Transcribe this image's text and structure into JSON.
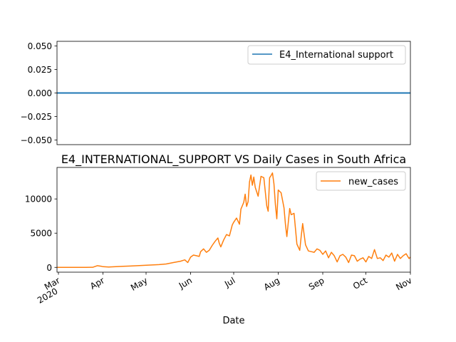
{
  "chart_data": [
    {
      "type": "line",
      "title": "",
      "xlabel": "",
      "ylabel": "",
      "ylim": [
        -0.055,
        0.055
      ],
      "yticks": [
        "0.050",
        "0.025",
        "0.000",
        "−0.025",
        "−0.050"
      ],
      "ytick_values": [
        0.05,
        0.025,
        0.0,
        -0.025,
        -0.05
      ],
      "grid": false,
      "legend_position": "upper right",
      "series": [
        {
          "name": "E4_International support",
          "color": "#1f77b4",
          "x": [
            "2020-02-29",
            "2020-11-01"
          ],
          "values": [
            0,
            0
          ]
        }
      ]
    },
    {
      "type": "line",
      "title": "E4_INTERNATIONAL_SUPPORT VS Daily Cases in South Africa",
      "xlabel": "Date",
      "ylabel": "",
      "ylim": [
        -700,
        14600
      ],
      "yticks": [
        "0",
        "5000",
        "10000"
      ],
      "ytick_values": [
        0,
        5000,
        10000
      ],
      "xlim": [
        "2020-02-29",
        "2020-11-01"
      ],
      "xticks": [
        {
          "date": "2020-03-01",
          "label": "Mar",
          "sublabel": "2020"
        },
        {
          "date": "2020-04-01",
          "label": "Apr",
          "sublabel": ""
        },
        {
          "date": "2020-05-01",
          "label": "May",
          "sublabel": ""
        },
        {
          "date": "2020-06-01",
          "label": "Jun",
          "sublabel": ""
        },
        {
          "date": "2020-07-01",
          "label": "Jul",
          "sublabel": ""
        },
        {
          "date": "2020-08-01",
          "label": "Aug",
          "sublabel": ""
        },
        {
          "date": "2020-09-01",
          "label": "Sep",
          "sublabel": ""
        },
        {
          "date": "2020-10-01",
          "label": "Oct",
          "sublabel": ""
        },
        {
          "date": "2020-11-01",
          "label": "Nov",
          "sublabel": ""
        }
      ],
      "grid": false,
      "legend_position": "upper right",
      "series": [
        {
          "name": "new_cases",
          "color": "#ff7f0e",
          "x": [
            "2020-02-29",
            "2020-03-05",
            "2020-03-10",
            "2020-03-15",
            "2020-03-20",
            "2020-03-25",
            "2020-03-28",
            "2020-03-31",
            "2020-04-01",
            "2020-04-05",
            "2020-04-10",
            "2020-04-15",
            "2020-04-20",
            "2020-04-25",
            "2020-04-30",
            "2020-05-05",
            "2020-05-10",
            "2020-05-15",
            "2020-05-20",
            "2020-05-25",
            "2020-05-28",
            "2020-05-30",
            "2020-06-01",
            "2020-06-03",
            "2020-06-05",
            "2020-06-07",
            "2020-06-08",
            "2020-06-10",
            "2020-06-12",
            "2020-06-14",
            "2020-06-16",
            "2020-06-18",
            "2020-06-20",
            "2020-06-21",
            "2020-06-22",
            "2020-06-24",
            "2020-06-26",
            "2020-06-28",
            "2020-06-30",
            "2020-07-01",
            "2020-07-03",
            "2020-07-05",
            "2020-07-06",
            "2020-07-08",
            "2020-07-09",
            "2020-07-10",
            "2020-07-11",
            "2020-07-12",
            "2020-07-13",
            "2020-07-14",
            "2020-07-15",
            "2020-07-16",
            "2020-07-18",
            "2020-07-20",
            "2020-07-22",
            "2020-07-24",
            "2020-07-25",
            "2020-07-26",
            "2020-07-27",
            "2020-07-28",
            "2020-07-29",
            "2020-07-30",
            "2020-07-31",
            "2020-08-01",
            "2020-08-03",
            "2020-08-05",
            "2020-08-06",
            "2020-08-07",
            "2020-08-09",
            "2020-08-10",
            "2020-08-12",
            "2020-08-14",
            "2020-08-16",
            "2020-08-17",
            "2020-08-18",
            "2020-08-20",
            "2020-08-22",
            "2020-08-24",
            "2020-08-26",
            "2020-08-28",
            "2020-08-30",
            "2020-09-01",
            "2020-09-03",
            "2020-09-05",
            "2020-09-07",
            "2020-09-09",
            "2020-09-11",
            "2020-09-13",
            "2020-09-15",
            "2020-09-17",
            "2020-09-19",
            "2020-09-21",
            "2020-09-23",
            "2020-09-25",
            "2020-09-27",
            "2020-09-29",
            "2020-10-01",
            "2020-10-03",
            "2020-10-05",
            "2020-10-07",
            "2020-10-09",
            "2020-10-11",
            "2020-10-13",
            "2020-10-15",
            "2020-10-17",
            "2020-10-19",
            "2020-10-21",
            "2020-10-23",
            "2020-10-25",
            "2020-10-27",
            "2020-10-29",
            "2020-10-31",
            "2020-11-01"
          ],
          "values": [
            0,
            0,
            0,
            0,
            10,
            20,
            250,
            150,
            100,
            50,
            100,
            150,
            200,
            250,
            300,
            350,
            400,
            500,
            700,
            900,
            1100,
            700,
            1500,
            1800,
            1700,
            1600,
            2300,
            2700,
            2200,
            2500,
            3200,
            3800,
            4300,
            3500,
            3000,
            4000,
            4800,
            4600,
            6200,
            6600,
            7200,
            6300,
            8500,
            9500,
            10700,
            8900,
            9600,
            12500,
            13500,
            12000,
            13200,
            11700,
            10400,
            13300,
            13100,
            9000,
            8200,
            13100,
            13400,
            13800,
            12200,
            9200,
            7100,
            11300,
            10900,
            8700,
            6300,
            4500,
            8600,
            7700,
            7900,
            3400,
            2500,
            4600,
            6400,
            3300,
            2400,
            2300,
            2200,
            2700,
            2500,
            1900,
            2400,
            1400,
            2200,
            1700,
            800,
            1700,
            1900,
            1500,
            700,
            1800,
            1700,
            900,
            1200,
            1400,
            800,
            1600,
            1300,
            2600,
            1300,
            1400,
            1000,
            1800,
            1500,
            2100,
            900,
            1900,
            1300,
            1700,
            2000,
            1300,
            1500
          ]
        }
      ]
    }
  ]
}
